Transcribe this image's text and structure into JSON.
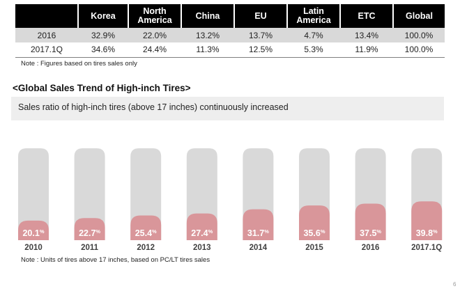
{
  "table": {
    "columns": [
      "",
      "Korea",
      "North America",
      "China",
      "EU",
      "Latin America",
      "ETC",
      "Global"
    ],
    "rows": [
      [
        "2016",
        "32.9%",
        "22.0%",
        "13.2%",
        "13.7%",
        "4.7%",
        "13.4%",
        "100.0%"
      ],
      [
        "2017.1Q",
        "34.6%",
        "24.4%",
        "11.3%",
        "12.5%",
        "5.3%",
        "11.9%",
        "100.0%"
      ]
    ]
  },
  "table_note": "Note : Figures based on tires sales only",
  "section_title": "<Global Sales Trend of High-inch Tires>",
  "callout": "Sales ratio of high-inch tires (above 17 inches) continuously increased",
  "chart_data": {
    "type": "bar",
    "categories": [
      "2010",
      "2011",
      "2012",
      "2013",
      "2014",
      "2015",
      "2016",
      "2017.1Q"
    ],
    "values": [
      20.1,
      22.7,
      25.4,
      27.4,
      31.7,
      35.6,
      37.5,
      39.8
    ],
    "value_labels": [
      "20.1",
      "22.7",
      "25.4",
      "27.4",
      "31.7",
      "35.6",
      "37.5",
      "39.8"
    ],
    "unit": "%",
    "ylim": [
      0,
      100
    ],
    "colors": {
      "bar": "#d9969a",
      "track": "#d9d9d9",
      "label": "#ffffff",
      "axis_label": "#404040"
    }
  },
  "chart_note": "Note : Units of tires above 17 inches, based on PC/LT tires sales",
  "page_number": "6"
}
